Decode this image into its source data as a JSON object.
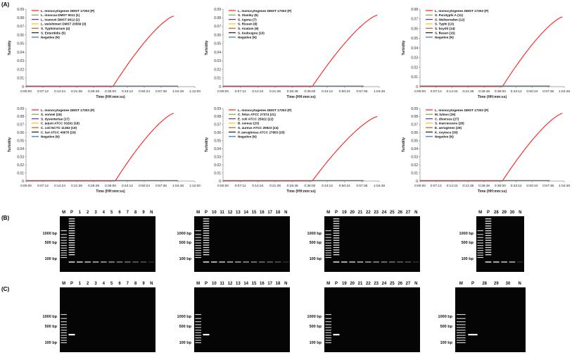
{
  "panel_labels": {
    "a": "(A)",
    "b": "(B)",
    "c": "(C)"
  },
  "colors": {
    "positive": "#ff1f1f",
    "series": [
      "#ff1f1f",
      "#70ad47",
      "#7030a0",
      "#ffc000",
      "#c55a11",
      "#1f1f1f",
      "#2e75b6"
    ]
  },
  "chart_data": [
    {
      "type": "line",
      "xlabel": "Time (HH:mm:ss)",
      "ylabel": "Turbidity",
      "xticks": [
        "0:00:00",
        "0:07:12",
        "0:14:24",
        "0:21:36",
        "0:28:48",
        "0:36:00",
        "0:43:12",
        "0:50:24",
        "0:57:36",
        "1:04:48",
        "1:12:00"
      ],
      "yticks": [
        "0",
        "0.01",
        "0.02",
        "0.03",
        "0.04",
        "0.05",
        "0.06",
        "0.07",
        "0.08",
        "0.09"
      ],
      "ylim": [
        0,
        0.09
      ],
      "grid": false,
      "legend_position": "top-left",
      "series": [
        {
          "name": "L. monocytogenes DMST 17303 (P)",
          "color": "#ff1f1f",
          "onset": 37,
          "end": 63,
          "peak": 0.082
        },
        {
          "name": "L. innocua DMST 9011 (1)",
          "color": "#70ad47"
        },
        {
          "name": "L. ivanovii DMST 9012 (2)",
          "color": "#7030a0"
        },
        {
          "name": "L. welshimeri DMST 20559 (3)",
          "color": "#ffc000"
        },
        {
          "name": "S. Typhimurium (4)",
          "color": "#c55a11"
        },
        {
          "name": "S. Enteritidis (5)",
          "color": "#1f1f1f"
        },
        {
          "name": "Negative (N)",
          "color": "#2e75b6"
        }
      ]
    },
    {
      "type": "line",
      "xlabel": "Time (HH:mm:ss)",
      "ylabel": "Turbidity",
      "xticks": [
        "0:00:00",
        "0:07:12",
        "0:14:24",
        "0:21:36",
        "0:28:48",
        "0:36:00",
        "0:43:12",
        "0:50:24",
        "0:57:36",
        "1:04:48"
      ],
      "yticks": [
        "0",
        "0.01",
        "0.02",
        "0.03",
        "0.04",
        "0.05",
        "0.06",
        "0.07",
        "0.08",
        "0.09"
      ],
      "ylim": [
        0,
        0.09
      ],
      "grid": false,
      "legend_position": "top-left",
      "series": [
        {
          "name": "L. monocytogenes DMST 17303 (P)",
          "color": "#ff1f1f",
          "onset": 37,
          "end": 64,
          "peak": 0.083
        },
        {
          "name": "S. Stanley (6)",
          "color": "#70ad47"
        },
        {
          "name": "S. Agona (7)",
          "color": "#7030a0"
        },
        {
          "name": "S. Rissen (8)",
          "color": "#ffc000"
        },
        {
          "name": "S. Anatum (9)",
          "color": "#c55a11"
        },
        {
          "name": "S. Kedougou (10)",
          "color": "#1f1f1f"
        },
        {
          "name": "Negative (N)",
          "color": "#2e75b6"
        }
      ]
    },
    {
      "type": "line",
      "xlabel": "Time (HH:mm:ss)",
      "ylabel": "Turbidity",
      "xticks": [
        "0:00:00",
        "0:07:12",
        "0:14:24",
        "0:21:36",
        "0:28:48",
        "0:36:00",
        "0:43:12",
        "0:50:24",
        "0:57:36",
        "1:04:48"
      ],
      "yticks": [
        "0",
        "0.01",
        "0.02",
        "0.03",
        "0.04",
        "0.05",
        "0.06",
        "0.07",
        "0.08"
      ],
      "ylim": [
        0,
        0.08
      ],
      "grid": false,
      "legend_position": "top-left",
      "series": [
        {
          "name": "L. monocytogenes DMST 17303 (P)",
          "color": "#ff1f1f",
          "onset": 37,
          "end": 64,
          "peak": 0.072
        },
        {
          "name": "S. Paratyphi A (11)",
          "color": "#70ad47"
        },
        {
          "name": "S. Weltevreden (12)",
          "color": "#7030a0"
        },
        {
          "name": "S. Typhi (13)",
          "color": "#ffc000"
        },
        {
          "name": "S. boydii (14)",
          "color": "#c55a11"
        },
        {
          "name": "S. flexeri (15)",
          "color": "#1f1f1f"
        },
        {
          "name": "Negative (N)",
          "color": "#2e75b6"
        }
      ]
    },
    {
      "type": "line",
      "xlabel": "Time (HH:mm:ss)",
      "ylabel": "Turbidity",
      "xticks": [
        "0:00:00",
        "0:07:12",
        "0:14:24",
        "0:21:36",
        "0:28:48",
        "0:36:00",
        "0:43:12",
        "0:50:24",
        "0:57:36",
        "1:04:48",
        "1:12:00"
      ],
      "yticks": [
        "0",
        "0.01",
        "0.02",
        "0.03",
        "0.04",
        "0.05",
        "0.06",
        "0.07",
        "0.08",
        "0.09"
      ],
      "ylim": [
        0,
        0.09
      ],
      "grid": false,
      "legend_position": "top-left",
      "series": [
        {
          "name": "L. monocytogenes DMST 17303 (P)",
          "color": "#ff1f1f",
          "onset": 38,
          "end": 63,
          "peak": 0.084
        },
        {
          "name": "S. sonnei (16)",
          "color": "#70ad47"
        },
        {
          "name": "S. dysenteriae (17)",
          "color": "#7030a0"
        },
        {
          "name": "C. jejuni ATCC 33291 (18)",
          "color": "#ffc000"
        },
        {
          "name": "C. coli NCTC 11353 (19)",
          "color": "#c55a11"
        },
        {
          "name": "C. lari ATCC 43675 (20)",
          "color": "#1f1f1f"
        },
        {
          "name": "Negative (N)",
          "color": "#2e75b6"
        }
      ]
    },
    {
      "type": "line",
      "xlabel": "Time (HH:mm:ss)",
      "ylabel": "Turbidity",
      "xticks": [
        "0:00:00",
        "0:07:12",
        "0:14:24",
        "0:21:36",
        "0:28:48",
        "0:36:00",
        "0:43:12",
        "0:50:24",
        "0:57:36",
        "1:04:48"
      ],
      "yticks": [
        "0",
        "0.01",
        "0.02",
        "0.03",
        "0.04",
        "0.05",
        "0.06",
        "0.07",
        "0.08",
        "0.09"
      ],
      "ylim": [
        0,
        0.09
      ],
      "grid": false,
      "legend_position": "top-left",
      "series": [
        {
          "name": "L. monocytogenes DMST 17303 (P)",
          "color": "#ff1f1f",
          "onset": 37,
          "end": 64,
          "peak": 0.08
        },
        {
          "name": "C. fetus ATCC 27374 (21)",
          "color": "#70ad47"
        },
        {
          "name": "E. coli ATCC 25922 (22)",
          "color": "#7030a0"
        },
        {
          "name": "B. cereus (23)",
          "color": "#ffc000"
        },
        {
          "name": "S. aureus ATCC 25923 (24)",
          "color": "#c55a11"
        },
        {
          "name": "P. aeruginosa ATCC 27853 (25)",
          "color": "#1f1f1f"
        },
        {
          "name": "Negative (N)",
          "color": "#2e75b6"
        }
      ]
    },
    {
      "type": "line",
      "xlabel": "Time (HH:mm:ss)",
      "ylabel": "Turbidity",
      "xticks": [
        "0:00:00",
        "0:07:12",
        "0:14:24",
        "0:21:36",
        "0:28:48",
        "0:36:00",
        "0:43:12",
        "0:50:24",
        "0:57:36",
        "1:04:48"
      ],
      "yticks": [
        "0",
        "0.01",
        "0.02",
        "0.03",
        "0.04",
        "0.05",
        "0.06",
        "0.07",
        "0.08",
        "0.09"
      ],
      "ylim": [
        0,
        0.09
      ],
      "grid": false,
      "legend_position": "top-left",
      "series": [
        {
          "name": "L. monocytogenes DMST 17303 (P)",
          "color": "#ff1f1f",
          "onset": 37,
          "end": 64,
          "peak": 0.084
        },
        {
          "name": "M. luteus (26)",
          "color": "#70ad47"
        },
        {
          "name": "C. diversus (27)",
          "color": "#7030a0"
        },
        {
          "name": "S. marcescens (28)",
          "color": "#ffc000"
        },
        {
          "name": "E. aerogenes (29)",
          "color": "#c55a11"
        },
        {
          "name": "K. oxytoca (30)",
          "color": "#1f1f1f"
        },
        {
          "name": "Negative (N)",
          "color": "#2e75b6"
        }
      ]
    }
  ],
  "gels": {
    "size_labels": [
      "1000 bp",
      "500 bp",
      "100 bp"
    ],
    "panel_b": [
      {
        "lanes": [
          "M",
          "P",
          "1",
          "2",
          "3",
          "4",
          "5",
          "6",
          "7",
          "8",
          "9",
          "N"
        ]
      },
      {
        "lanes": [
          "M",
          "P",
          "10",
          "11",
          "12",
          "13",
          "14",
          "15",
          "16",
          "17",
          "18",
          "N"
        ]
      },
      {
        "lanes": [
          "M",
          "P",
          "19",
          "20",
          "21",
          "22",
          "23",
          "24",
          "25",
          "26",
          "27",
          "N"
        ]
      },
      {
        "lanes": [
          "M",
          "P",
          "28",
          "29",
          "30",
          "N"
        ]
      }
    ],
    "panel_c": [
      {
        "lanes": [
          "M",
          "P",
          "1",
          "2",
          "3",
          "4",
          "5",
          "6",
          "7",
          "8",
          "9",
          "N"
        ]
      },
      {
        "lanes": [
          "M",
          "P",
          "10",
          "11",
          "12",
          "13",
          "14",
          "15",
          "16",
          "17",
          "18",
          "N"
        ]
      },
      {
        "lanes": [
          "M",
          "P",
          "19",
          "20",
          "21",
          "22",
          "23",
          "24",
          "25",
          "26",
          "27",
          "N"
        ]
      },
      {
        "lanes": [
          "M",
          "P",
          "28",
          "29",
          "30",
          "N"
        ]
      }
    ]
  }
}
